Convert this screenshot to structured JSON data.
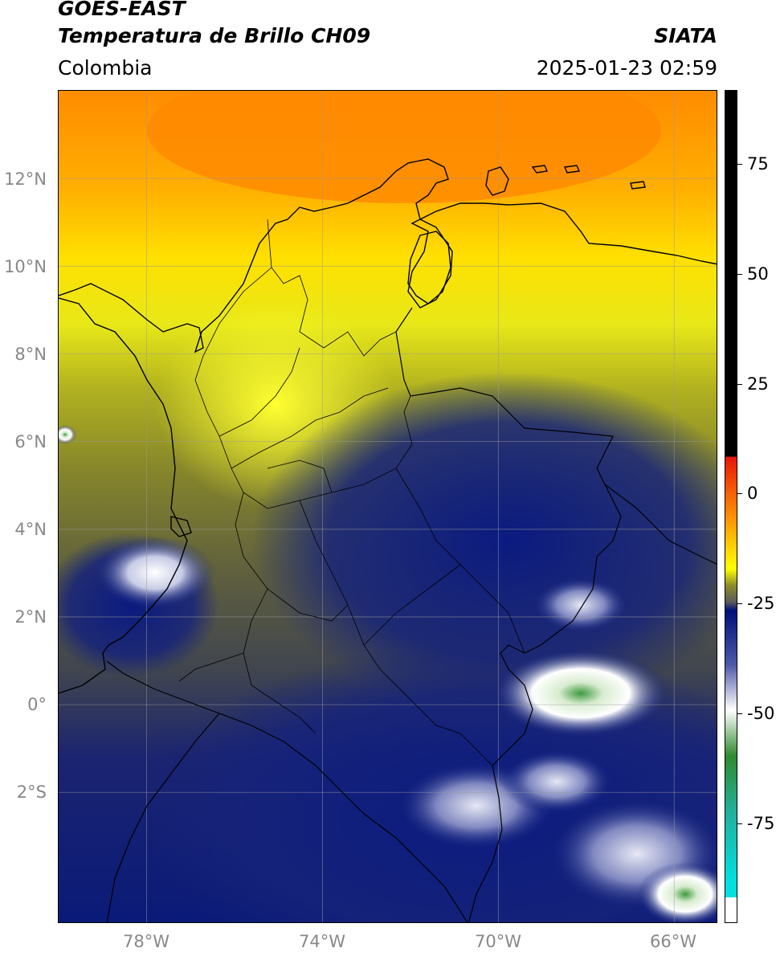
{
  "header": {
    "satellite": "GOES-EAST",
    "product": "Temperatura de Brillo CH09",
    "organization": "SIATA",
    "region": "Colombia",
    "datetime": "2025-01-23 02:59"
  },
  "map": {
    "lat_labels": [
      "12°N",
      "10°N",
      "8°N",
      "6°N",
      "4°N",
      "2°N",
      "0°",
      "2°S"
    ],
    "lon_labels": [
      "78°W",
      "74°W",
      "70°W",
      "66°W"
    ],
    "lon_range": [
      -80,
      -65
    ],
    "lat_range": [
      -5,
      14
    ],
    "gridlines": true
  },
  "colorbar": {
    "tick_labels": [
      "75",
      "50",
      "25",
      "0",
      "-25",
      "-50",
      "-75"
    ],
    "colors": {
      "black": "#000000",
      "red": "#e8150a",
      "orange": "#ff8c00",
      "yellow": "#ffff00",
      "olive": "#8c8c28",
      "gray": "#5a5a5a",
      "navy": "#00107a",
      "white": "#ffffff",
      "green": "#2e8b2e",
      "teal": "#20b2a0",
      "cyan": "#00e0e0"
    }
  }
}
